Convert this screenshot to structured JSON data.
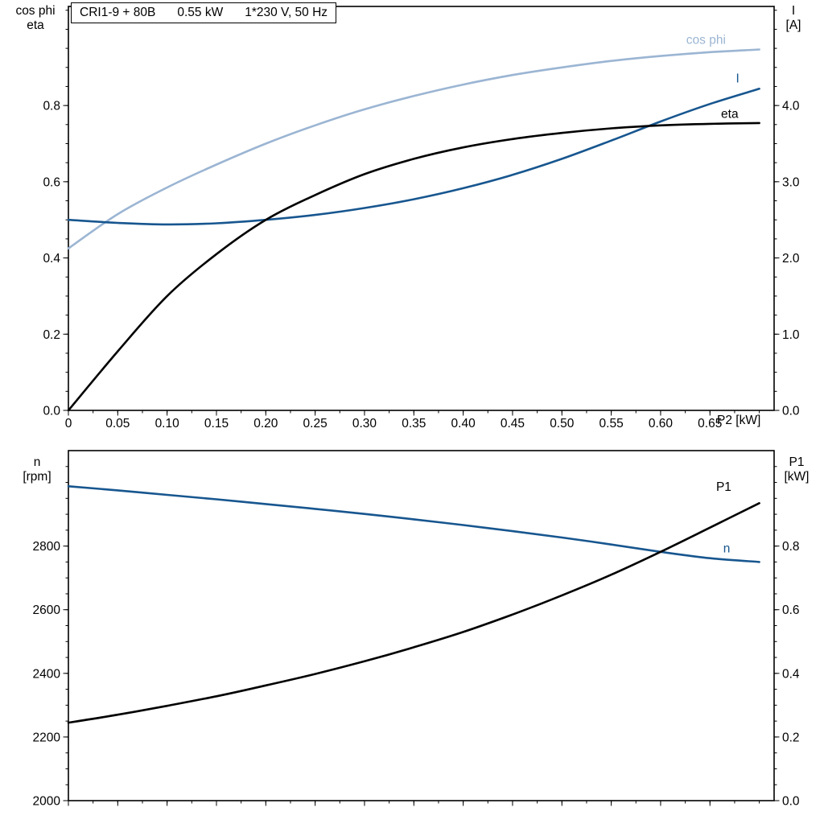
{
  "title_box": {
    "segments": [
      "CRI1-9 + 80B",
      "0.55 kW",
      "1*230 V, 50 Hz"
    ]
  },
  "colors": {
    "dark_blue": "#17568f",
    "light_blue": "#9bb5d3",
    "black": "#000000"
  },
  "chart_data": [
    {
      "id": "top",
      "type": "line",
      "x": [
        0,
        0.05,
        0.1,
        0.15,
        0.2,
        0.25,
        0.3,
        0.35,
        0.4,
        0.45,
        0.5,
        0.55,
        0.6,
        0.65,
        0.7
      ],
      "x_axis": {
        "label": "P2 [kW]",
        "range": [
          0,
          0.715
        ],
        "minor_step": 0.025,
        "ticks": [
          0,
          0.05,
          0.1,
          0.15,
          0.2,
          0.25,
          0.3,
          0.35,
          0.4,
          0.45,
          0.5,
          0.55,
          0.6,
          0.65
        ],
        "tick_labels": [
          "0",
          "0.05",
          "0.10",
          "0.15",
          "0.20",
          "0.25",
          "0.30",
          "0.35",
          "0.40",
          "0.45",
          "0.50",
          "0.55",
          "0.60",
          "0.65"
        ]
      },
      "y_left": {
        "title_lines": [
          "cos phi",
          "eta"
        ],
        "range": [
          0,
          1.06
        ],
        "minor_step": 0.05,
        "ticks": [
          0,
          0.2,
          0.4,
          0.6,
          0.8
        ],
        "tick_labels": [
          "0.0",
          "0.2",
          "0.4",
          "0.6",
          "0.8"
        ]
      },
      "y_right": {
        "title_lines": [
          "I",
          "[A]"
        ],
        "range": [
          0,
          5.3
        ],
        "minor_step": 0.25,
        "ticks": [
          0,
          1,
          2,
          3,
          4
        ],
        "tick_labels": [
          "0.0",
          "1.0",
          "2.0",
          "3.0",
          "4.0"
        ]
      },
      "series": [
        {
          "id": "cos-phi",
          "name": "cos phi",
          "axis": "left",
          "color": "#9bb5d3",
          "label": {
            "x": 0.646,
            "y": 0.962
          },
          "values": [
            0.425,
            0.515,
            0.585,
            0.645,
            0.7,
            0.748,
            0.79,
            0.825,
            0.855,
            0.88,
            0.9,
            0.917,
            0.93,
            0.94,
            0.947
          ]
        },
        {
          "id": "current",
          "name": "I",
          "axis": "right",
          "color": "#17568f",
          "label": {
            "x": 0.678,
            "y": 4.3
          },
          "values": [
            2.5,
            2.46,
            2.44,
            2.455,
            2.5,
            2.565,
            2.655,
            2.77,
            2.915,
            3.09,
            3.3,
            3.54,
            3.79,
            4.02,
            4.22
          ]
        },
        {
          "id": "eta",
          "name": "eta",
          "axis": "left",
          "color": "#000000",
          "label": {
            "x": 0.67,
            "y": 0.768
          },
          "values": [
            0,
            0.155,
            0.3,
            0.41,
            0.5,
            0.565,
            0.62,
            0.66,
            0.69,
            0.712,
            0.728,
            0.74,
            0.748,
            0.752,
            0.754
          ]
        }
      ]
    },
    {
      "id": "bottom",
      "type": "line",
      "x": [
        0,
        0.05,
        0.1,
        0.15,
        0.2,
        0.25,
        0.3,
        0.35,
        0.4,
        0.45,
        0.5,
        0.55,
        0.6,
        0.65,
        0.7
      ],
      "x_axis": {
        "label": "",
        "range": [
          0,
          0.715
        ],
        "minor_step": 0.025,
        "ticks": [
          0,
          0.05,
          0.1,
          0.15,
          0.2,
          0.25,
          0.3,
          0.35,
          0.4,
          0.45,
          0.5,
          0.55,
          0.6,
          0.65
        ],
        "tick_labels": []
      },
      "y_left": {
        "title_lines": [
          "n",
          "[rpm]"
        ],
        "range": [
          2000,
          3100
        ],
        "minor_step": 50,
        "ticks": [
          2000,
          2200,
          2400,
          2600,
          2800
        ],
        "tick_labels": [
          "2000",
          "2200",
          "2400",
          "2600",
          "2800"
        ]
      },
      "y_right": {
        "title_lines": [
          "P1",
          "[kW]"
        ],
        "range": [
          0,
          1.1
        ],
        "minor_step": 0.05,
        "ticks": [
          0,
          0.2,
          0.4,
          0.6,
          0.8
        ],
        "tick_labels": [
          "0.0",
          "0.2",
          "0.4",
          "0.6",
          "0.8"
        ]
      },
      "series": [
        {
          "id": "speed",
          "name": "n",
          "axis": "left",
          "color": "#17568f",
          "label": {
            "x": 0.667,
            "y": 2780
          },
          "values": [
            2988,
            2975,
            2961,
            2947,
            2932,
            2917,
            2901,
            2884,
            2866,
            2847,
            2827,
            2805,
            2782,
            2762,
            2750
          ]
        },
        {
          "id": "p1",
          "name": "P1",
          "axis": "right",
          "color": "#000000",
          "label": {
            "x": 0.664,
            "y": 0.973
          },
          "values": [
            0.245,
            0.27,
            0.298,
            0.328,
            0.362,
            0.398,
            0.438,
            0.482,
            0.53,
            0.585,
            0.645,
            0.71,
            0.782,
            0.858,
            0.935
          ]
        }
      ]
    }
  ]
}
